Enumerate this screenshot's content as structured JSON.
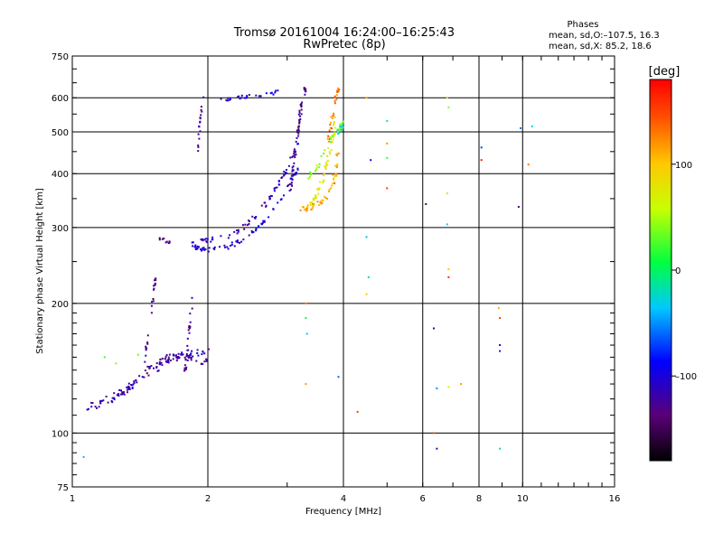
{
  "header": {
    "title": "Tromsø 20161004 16:24:00–16:25:43",
    "subtitle": "RwPretec (8p)"
  },
  "phase_info": {
    "heading": "Phases",
    "line_o": "mean, sd,O:–107.5, 16.3",
    "line_x": "mean, sd,X:  85.2, 18.6"
  },
  "colorbar": {
    "label": "[deg]",
    "ticks": [
      {
        "value": 100,
        "label": "100"
      },
      {
        "value": 0,
        "label": "0"
      },
      {
        "value": -100,
        "label": "–100"
      }
    ],
    "range": [
      -180,
      180
    ]
  },
  "chart_data": {
    "type": "scatter",
    "title": "Tromsø 20161004 16:24:00–16:25:43",
    "subtitle": "RwPretec (8p)",
    "xlabel": "Frequency [MHz]",
    "ylabel": "Stationary phase Virtual Height [km]",
    "xscale": "log",
    "yscale": "log",
    "xlim": [
      1,
      16
    ],
    "ylim": [
      75,
      750
    ],
    "xticks": [
      {
        "value": 1,
        "label": "1"
      },
      {
        "value": 2,
        "label": "2"
      },
      {
        "value": 4,
        "label": "4"
      },
      {
        "value": 6,
        "label": "6"
      },
      {
        "value": 8,
        "label": "8"
      },
      {
        "value": 10,
        "label": "10"
      },
      {
        "value": 16,
        "label": "16"
      }
    ],
    "yticks": [
      {
        "value": 75,
        "label": "75"
      },
      {
        "value": 100,
        "label": "100"
      },
      {
        "value": 200,
        "label": "200"
      },
      {
        "value": 300,
        "label": "300"
      },
      {
        "value": 400,
        "label": "400"
      },
      {
        "value": 500,
        "label": "500"
      },
      {
        "value": 600,
        "label": "600"
      },
      {
        "value": 750,
        "label": "750"
      }
    ],
    "grid": true,
    "colorscale": "phase [deg], -180 black → purple → blue → cyan → green → yellow → red 180",
    "traces": [
      {
        "x": [
          1.05,
          1.12,
          1.2,
          1.28,
          1.35,
          1.42,
          1.5,
          1.58,
          1.65,
          1.72,
          1.8,
          1.88,
          1.95,
          2.0
        ],
        "y": [
          113,
          115,
          118,
          122,
          128,
          135,
          142,
          148,
          150,
          151,
          150,
          148,
          147,
          147
        ],
        "phase": -125,
        "count": 90,
        "spread": 0.018
      },
      {
        "x": [
          1.1,
          1.2,
          1.3,
          1.4,
          1.5,
          1.6,
          1.7,
          1.8,
          1.9,
          2.0
        ],
        "y": [
          118,
          120,
          125,
          132,
          140,
          145,
          150,
          152,
          153,
          154
        ],
        "phase": -115,
        "count": 60,
        "spread": 0.02
      },
      {
        "x": [
          1.44,
          1.46,
          1.48,
          1.5,
          1.52,
          1.53
        ],
        "y": [
          140,
          155,
          175,
          195,
          215,
          230
        ],
        "phase": -130,
        "count": 25,
        "spread": 0.01
      },
      {
        "x": [
          1.78,
          1.8,
          1.82,
          1.84,
          1.86
        ],
        "y": [
          140,
          155,
          175,
          195,
          215
        ],
        "phase": -125,
        "count": 22,
        "spread": 0.01
      },
      {
        "x": [
          1.55,
          1.6,
          1.65
        ],
        "y": [
          285,
          280,
          278
        ],
        "phase": -135,
        "count": 10,
        "spread": 0.01
      },
      {
        "x": [
          1.85,
          1.9,
          2.0,
          2.2,
          2.4,
          2.6,
          2.8,
          3.0,
          3.2
        ],
        "y": [
          275,
          268,
          266,
          270,
          280,
          300,
          330,
          370,
          420
        ],
        "phase": -105,
        "count": 80,
        "spread": 0.012
      },
      {
        "x": [
          1.9,
          2.0,
          2.2,
          2.4,
          2.6,
          2.8,
          3.0,
          3.2
        ],
        "y": [
          285,
          280,
          285,
          300,
          325,
          360,
          410,
          480
        ],
        "phase": -112,
        "count": 70,
        "spread": 0.012
      },
      {
        "x": [
          1.9,
          1.92,
          1.95
        ],
        "y": [
          440,
          520,
          600
        ],
        "phase": -125,
        "count": 18,
        "spread": 0.01
      },
      {
        "x": [
          2.1,
          2.3,
          2.5,
          2.7,
          2.9
        ],
        "y": [
          590,
          600,
          605,
          610,
          620
        ],
        "phase": -105,
        "count": 30,
        "spread": 0.01
      },
      {
        "x": [
          3.05,
          3.1,
          3.15,
          3.2,
          3.25,
          3.3
        ],
        "y": [
          360,
          420,
          480,
          540,
          600,
          640
        ],
        "phase": -130,
        "count": 55,
        "spread": 0.012
      },
      {
        "x": [
          3.2,
          3.4,
          3.6,
          3.8,
          3.9
        ],
        "y": [
          330,
          335,
          345,
          380,
          450
        ],
        "phase": 110,
        "count": 55,
        "spread": 0.015
      },
      {
        "x": [
          3.4,
          3.5,
          3.6,
          3.7,
          3.8,
          3.85
        ],
        "y": [
          340,
          360,
          390,
          440,
          500,
          560
        ],
        "phase": 75,
        "count": 45,
        "spread": 0.015
      },
      {
        "x": [
          3.7,
          3.75,
          3.8,
          3.85,
          3.9
        ],
        "y": [
          470,
          510,
          560,
          600,
          630
        ],
        "phase": 130,
        "count": 30,
        "spread": 0.012
      },
      {
        "x": [
          3.3,
          3.5,
          3.7,
          3.9,
          4.0
        ],
        "y": [
          380,
          420,
          470,
          500,
          520
        ],
        "phase": 45,
        "count": 35,
        "spread": 0.02
      },
      {
        "x": [
          4.0,
          3.9,
          3.95
        ],
        "y": [
          505,
          495,
          520
        ],
        "phase": -20,
        "count": 10,
        "spread": 0.02
      }
    ],
    "scatter": [
      {
        "x": 1.06,
        "y": 88,
        "phase": -40
      },
      {
        "x": 1.25,
        "y": 145,
        "phase": 40
      },
      {
        "x": 1.18,
        "y": 150,
        "phase": 20
      },
      {
        "x": 1.4,
        "y": 152,
        "phase": 30
      },
      {
        "x": 3.3,
        "y": 185,
        "phase": 10
      },
      {
        "x": 3.32,
        "y": 170,
        "phase": -30
      },
      {
        "x": 3.3,
        "y": 130,
        "phase": 120
      },
      {
        "x": 3.3,
        "y": 200,
        "phase": 130
      },
      {
        "x": 3.9,
        "y": 135,
        "phase": -60
      },
      {
        "x": 4.3,
        "y": 112,
        "phase": 150
      },
      {
        "x": 4.5,
        "y": 600,
        "phase": 110
      },
      {
        "x": 4.5,
        "y": 210,
        "phase": 100
      },
      {
        "x": 4.55,
        "y": 230,
        "phase": -20
      },
      {
        "x": 4.5,
        "y": 285,
        "phase": -40
      },
      {
        "x": 4.6,
        "y": 430,
        "phase": -90
      },
      {
        "x": 5.0,
        "y": 530,
        "phase": -10
      },
      {
        "x": 5.0,
        "y": 470,
        "phase": 120
      },
      {
        "x": 5.0,
        "y": 435,
        "phase": 20
      },
      {
        "x": 5.0,
        "y": 370,
        "phase": 155
      },
      {
        "x": 6.1,
        "y": 340,
        "phase": -150
      },
      {
        "x": 6.35,
        "y": 175,
        "phase": -110
      },
      {
        "x": 6.35,
        "y": 100,
        "phase": 140
      },
      {
        "x": 6.45,
        "y": 127,
        "phase": -50
      },
      {
        "x": 6.45,
        "y": 92,
        "phase": -120
      },
      {
        "x": 6.8,
        "y": 600,
        "phase": 90
      },
      {
        "x": 6.85,
        "y": 570,
        "phase": 40
      },
      {
        "x": 6.8,
        "y": 360,
        "phase": 80
      },
      {
        "x": 6.8,
        "y": 305,
        "phase": -30
      },
      {
        "x": 6.85,
        "y": 240,
        "phase": 100
      },
      {
        "x": 6.85,
        "y": 230,
        "phase": 160
      },
      {
        "x": 6.85,
        "y": 128,
        "phase": 60
      },
      {
        "x": 7.3,
        "y": 130,
        "phase": 120
      },
      {
        "x": 8.1,
        "y": 460,
        "phase": -70
      },
      {
        "x": 8.1,
        "y": 430,
        "phase": 170
      },
      {
        "x": 8.85,
        "y": 195,
        "phase": 110
      },
      {
        "x": 8.9,
        "y": 185,
        "phase": 150
      },
      {
        "x": 8.9,
        "y": 160,
        "phase": -100
      },
      {
        "x": 8.9,
        "y": 155,
        "phase": -80
      },
      {
        "x": 8.9,
        "y": 92,
        "phase": -20
      },
      {
        "x": 9.8,
        "y": 335,
        "phase": -140
      },
      {
        "x": 9.9,
        "y": 510,
        "phase": -60
      },
      {
        "x": 10.5,
        "y": 515,
        "phase": -30
      },
      {
        "x": 10.3,
        "y": 420,
        "phase": 130
      }
    ]
  }
}
